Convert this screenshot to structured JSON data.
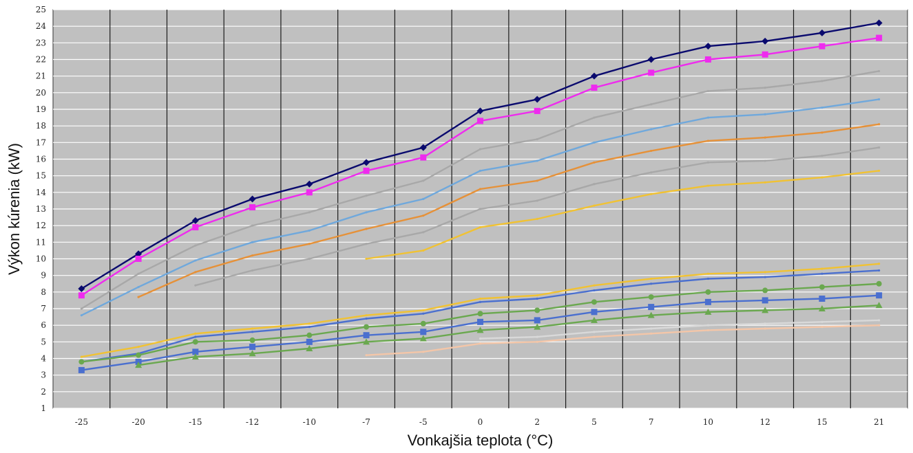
{
  "chart_data": {
    "type": "line",
    "title": "",
    "xlabel": "Vonkajšia teplota (°C)",
    "ylabel": "Výkon kúrenia (kW)",
    "categories": [
      "-25",
      "-20",
      "-15",
      "-12",
      "-10",
      "-7",
      "-5",
      "0",
      "2",
      "5",
      "7",
      "10",
      "12",
      "15",
      "21"
    ],
    "yticks": [
      1,
      2,
      3,
      4,
      5,
      6,
      7,
      8,
      9,
      10,
      11,
      12,
      13,
      14,
      15,
      16,
      17,
      18,
      19,
      20,
      21,
      22,
      23,
      24,
      25
    ],
    "ylim": [
      1,
      25
    ],
    "grid": true,
    "background": "#c0c0c0",
    "series": [
      {
        "color": "#0a0a6e",
        "marker": "diamond",
        "values": [
          8.2,
          10.3,
          12.3,
          13.6,
          14.5,
          15.8,
          16.7,
          18.9,
          19.6,
          21.0,
          22.0,
          22.8,
          23.1,
          23.6,
          24.2
        ]
      },
      {
        "color": "#ee2bee",
        "marker": "square",
        "values": [
          7.8,
          10.0,
          11.9,
          13.1,
          14.0,
          15.3,
          16.1,
          18.3,
          18.9,
          20.3,
          21.2,
          22.0,
          22.3,
          22.8,
          23.3
        ]
      },
      {
        "color": "#a8a8a8",
        "marker": "none",
        "values": [
          7.0,
          9.1,
          10.8,
          12.0,
          12.8,
          13.8,
          14.7,
          16.6,
          17.2,
          18.5,
          19.3,
          20.1,
          20.3,
          20.7,
          21.3
        ]
      },
      {
        "color": "#6fa8dc",
        "marker": "none",
        "values": [
          6.6,
          8.3,
          9.9,
          11.0,
          11.7,
          12.8,
          13.6,
          15.3,
          15.9,
          17.0,
          17.8,
          18.5,
          18.7,
          19.1,
          19.6
        ]
      },
      {
        "color": "#e69138",
        "marker": "none",
        "values": [
          null,
          7.7,
          9.2,
          10.2,
          10.9,
          11.8,
          12.6,
          14.2,
          14.7,
          15.8,
          16.5,
          17.1,
          17.3,
          17.6,
          18.1
        ]
      },
      {
        "color": "#a8a8a8",
        "marker": "none",
        "values": [
          null,
          null,
          8.4,
          9.3,
          10.0,
          10.9,
          11.6,
          13.0,
          13.5,
          14.5,
          15.2,
          15.8,
          15.9,
          16.2,
          16.7
        ]
      },
      {
        "color": "#f1c232",
        "marker": "none",
        "values": [
          null,
          null,
          null,
          null,
          null,
          10.0,
          10.5,
          11.9,
          12.4,
          13.2,
          13.9,
          14.4,
          14.6,
          14.9,
          15.3
        ]
      },
      {
        "color": "#f1c232",
        "marker": "none",
        "values": [
          4.1,
          4.7,
          5.5,
          5.8,
          6.1,
          6.6,
          6.9,
          7.6,
          7.8,
          8.4,
          8.8,
          9.1,
          9.2,
          9.4,
          9.7
        ]
      },
      {
        "color": "#4a6fcf",
        "marker": "none",
        "values": [
          3.8,
          4.3,
          5.3,
          5.6,
          5.9,
          6.4,
          6.7,
          7.4,
          7.6,
          8.1,
          8.5,
          8.8,
          8.9,
          9.1,
          9.3
        ]
      },
      {
        "color": "#6aa84f",
        "marker": "circle",
        "values": [
          3.8,
          4.2,
          5.0,
          5.1,
          5.4,
          5.9,
          6.1,
          6.7,
          6.9,
          7.4,
          7.7,
          8.0,
          8.1,
          8.3,
          8.5
        ]
      },
      {
        "color": "#4a6fcf",
        "marker": "square",
        "values": [
          3.3,
          3.8,
          4.4,
          4.7,
          5.0,
          5.4,
          5.6,
          6.2,
          6.3,
          6.8,
          7.1,
          7.4,
          7.5,
          7.6,
          7.8
        ]
      },
      {
        "color": "#6aa84f",
        "marker": "triangle",
        "values": [
          null,
          3.6,
          4.1,
          4.3,
          4.6,
          5.0,
          5.2,
          5.7,
          5.9,
          6.3,
          6.6,
          6.8,
          6.9,
          7.0,
          7.2
        ]
      },
      {
        "color": "#f4c6a8",
        "marker": "none",
        "values": [
          null,
          null,
          null,
          null,
          null,
          4.2,
          4.4,
          4.9,
          5.0,
          5.3,
          5.5,
          5.7,
          5.8,
          5.9,
          6.0
        ]
      },
      {
        "color": "#d9d9d9",
        "marker": "none",
        "values": [
          null,
          null,
          null,
          null,
          null,
          null,
          null,
          5.2,
          5.3,
          5.6,
          5.8,
          6.0,
          6.1,
          6.2,
          6.3
        ]
      }
    ]
  }
}
